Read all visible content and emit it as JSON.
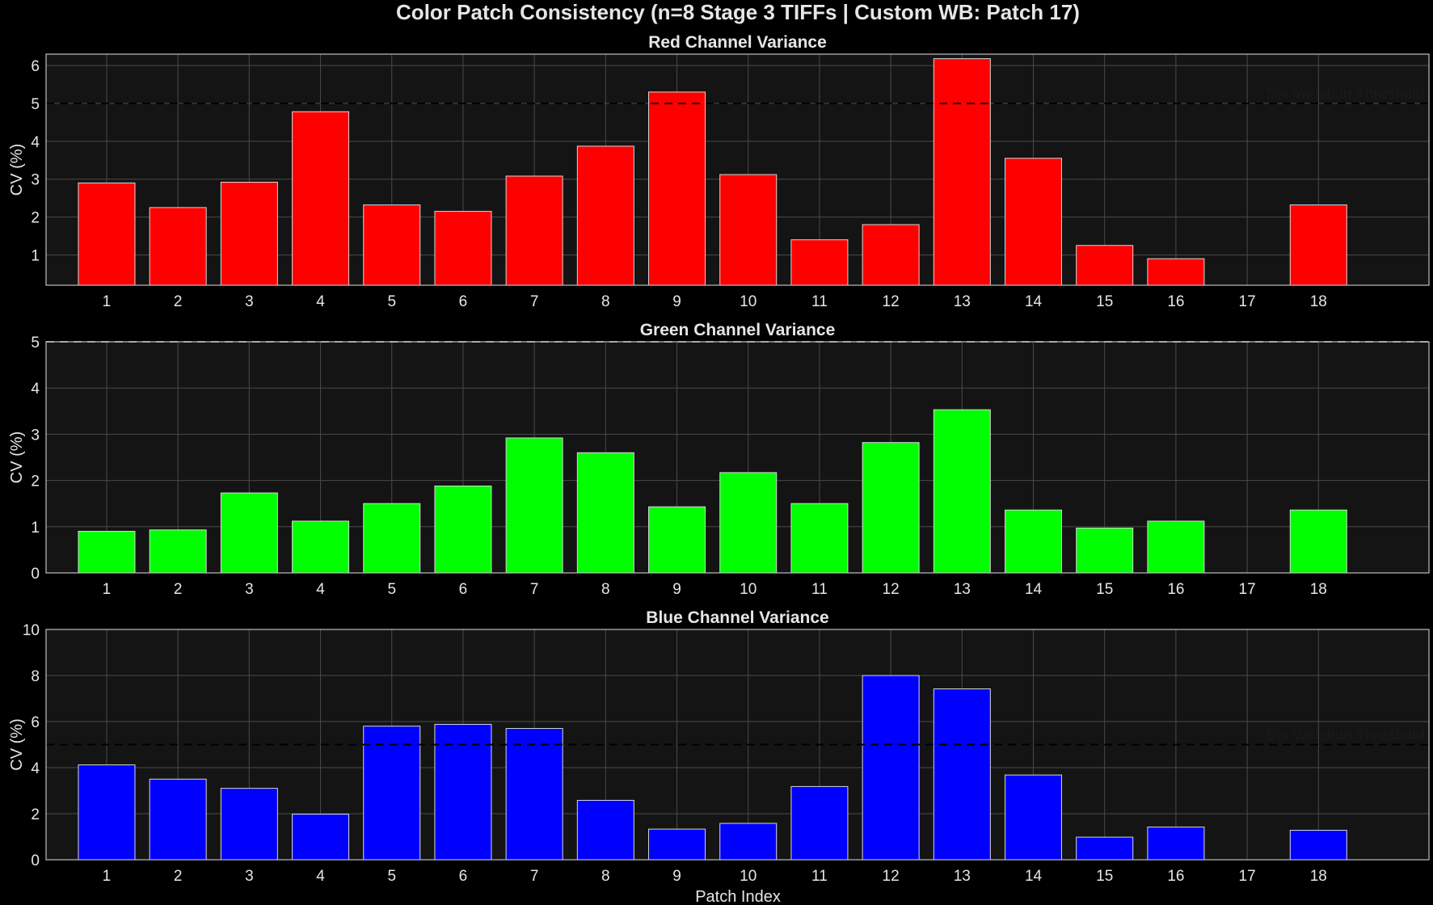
{
  "figure_title": "Color Patch Consistency (n=8 Stage 3 TIFFs | Custom WB: Patch 17)",
  "xlabel": "Patch Index",
  "chart_data": [
    {
      "type": "bar",
      "title": "Red Channel Variance",
      "ylabel": "CV (%)",
      "color": "#ff0000",
      "categories": [
        "1",
        "2",
        "3",
        "4",
        "5",
        "6",
        "7",
        "8",
        "9",
        "10",
        "11",
        "12",
        "13",
        "14",
        "15",
        "16",
        "17",
        "18"
      ],
      "values": [
        2.9,
        2.25,
        2.92,
        4.78,
        2.32,
        2.15,
        3.08,
        3.87,
        5.3,
        3.12,
        1.4,
        1.8,
        6.18,
        3.55,
        1.25,
        0.9,
        null,
        2.32
      ],
      "ylim": [
        0.2,
        6.3
      ],
      "yticks": [
        1,
        2,
        3,
        4,
        5,
        6
      ],
      "threshold": 5,
      "threshold_label": "5% Variation Threshold"
    },
    {
      "type": "bar",
      "title": "Green Channel Variance",
      "ylabel": "CV (%)",
      "color": "#00ff00",
      "categories": [
        "1",
        "2",
        "3",
        "4",
        "5",
        "6",
        "7",
        "8",
        "9",
        "10",
        "11",
        "12",
        "13",
        "14",
        "15",
        "16",
        "17",
        "18"
      ],
      "values": [
        0.9,
        0.93,
        1.73,
        1.12,
        1.5,
        1.88,
        2.92,
        2.6,
        1.43,
        2.17,
        1.5,
        2.82,
        3.53,
        1.36,
        0.97,
        1.12,
        null,
        1.36
      ],
      "ylim": [
        0,
        5
      ],
      "yticks": [
        0,
        1,
        2,
        3,
        4,
        5
      ],
      "threshold": 5,
      "threshold_label": ""
    },
    {
      "type": "bar",
      "title": "Blue Channel Variance",
      "ylabel": "CV (%)",
      "color": "#0000ff",
      "categories": [
        "1",
        "2",
        "3",
        "4",
        "5",
        "6",
        "7",
        "8",
        "9",
        "10",
        "11",
        "12",
        "13",
        "14",
        "15",
        "16",
        "17",
        "18"
      ],
      "values": [
        4.12,
        3.5,
        3.1,
        1.98,
        5.8,
        5.88,
        5.7,
        2.58,
        1.33,
        1.58,
        3.18,
        8.0,
        7.42,
        3.68,
        0.98,
        1.42,
        null,
        1.28
      ],
      "ylim": [
        0,
        10
      ],
      "yticks": [
        0,
        2,
        4,
        6,
        8,
        10
      ],
      "threshold": 5,
      "threshold_label": "5% Variation Threshold"
    }
  ]
}
